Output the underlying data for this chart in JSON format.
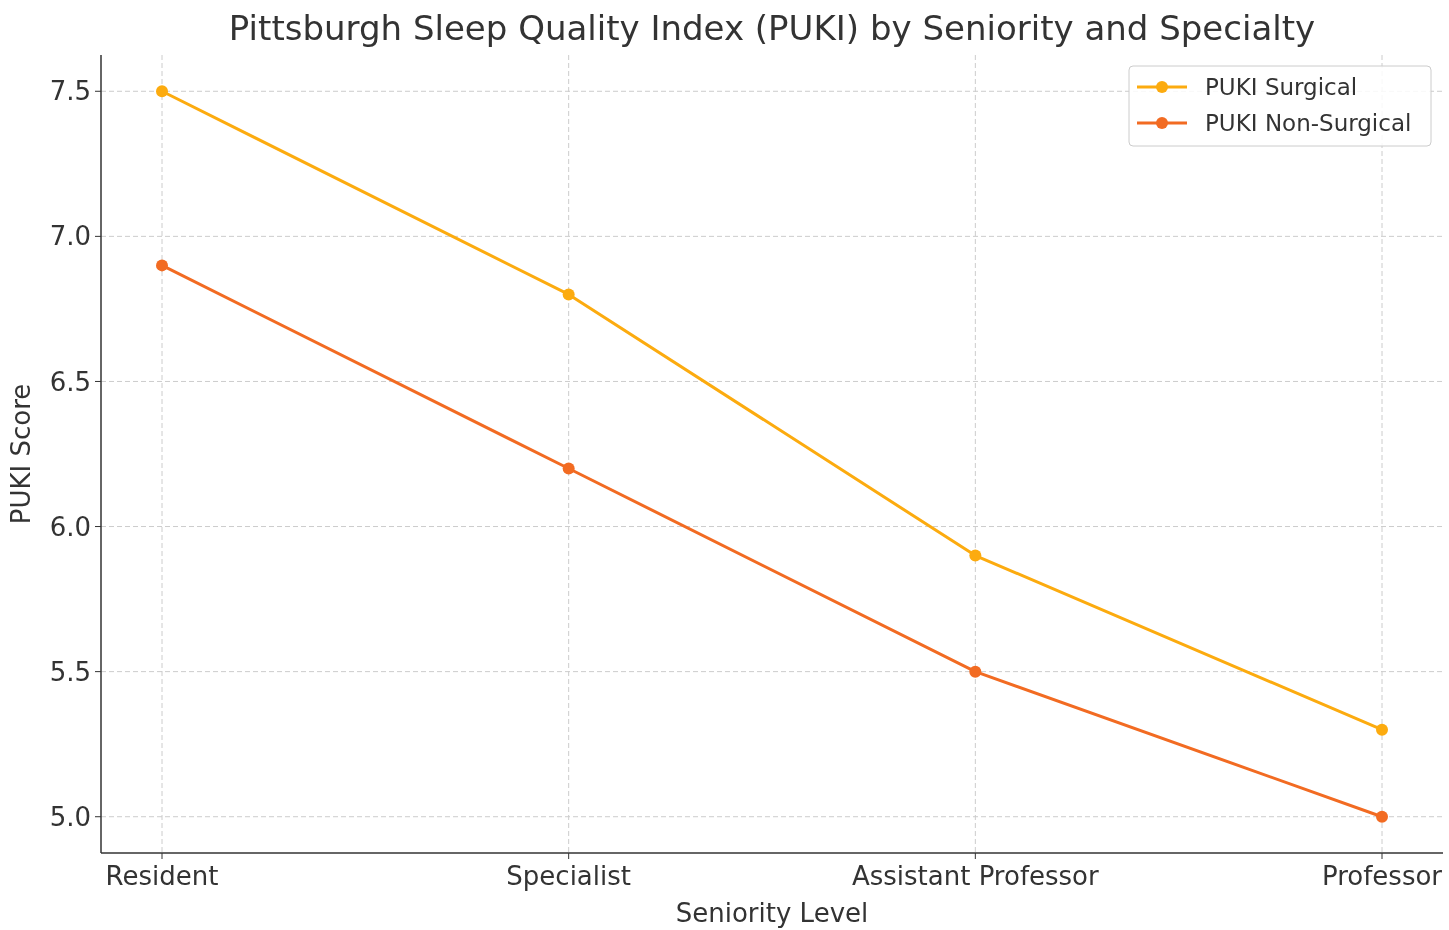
{
  "chart_data": {
    "type": "line",
    "title": "Pittsburgh Sleep Quality Index (PUKI) by Seniority and Specialty",
    "xlabel": "Seniority Level",
    "ylabel": "PUKI Score",
    "categories": [
      "Resident",
      "Specialist",
      "Assistant Professor",
      "Professor"
    ],
    "series": [
      {
        "name": "PUKI Surgical",
        "color": "#fcab0f",
        "values": [
          7.5,
          6.8,
          5.9,
          5.3
        ]
      },
      {
        "name": "PUKI Non-Surgical",
        "color": "#f26b22",
        "values": [
          6.9,
          6.2,
          5.5,
          5.0
        ]
      }
    ],
    "ylim": [
      4.875,
      7.625
    ],
    "yticks": [
      {
        "value": 5.0,
        "label": "5.0"
      },
      {
        "value": 5.5,
        "label": "5.5"
      },
      {
        "value": 6.0,
        "label": "6.0"
      },
      {
        "value": 6.5,
        "label": "6.5"
      },
      {
        "value": 7.0,
        "label": "7.0"
      },
      {
        "value": 7.5,
        "label": "7.5"
      }
    ],
    "grid": true,
    "legend": "top right",
    "marker": "circle",
    "line_style": "solid"
  }
}
